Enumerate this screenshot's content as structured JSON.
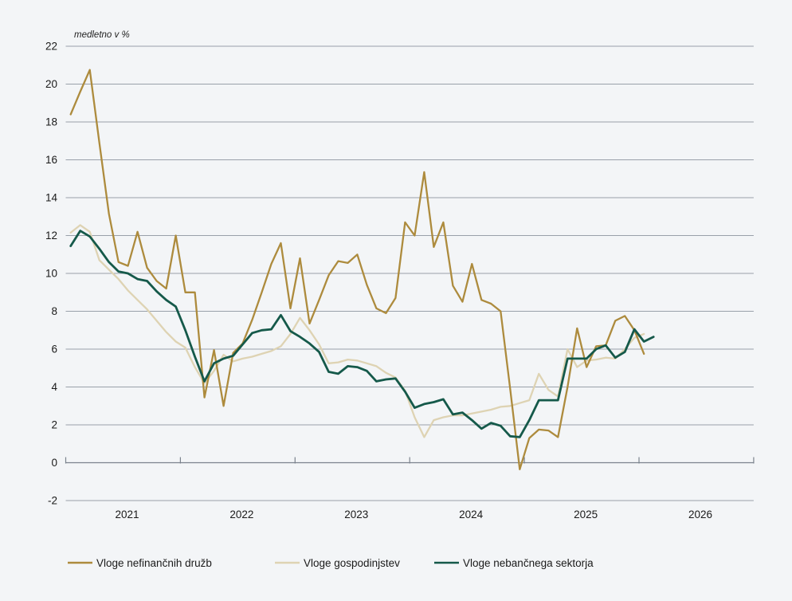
{
  "chart_data": {
    "type": "line",
    "note": "medletno v %",
    "title": "",
    "xlabel": "",
    "ylabel": "medletno v %",
    "ylim": [
      -2,
      22
    ],
    "ytick_step": 2,
    "ytick_labels": [
      "22",
      "20",
      "18",
      "16",
      "14",
      "12",
      "10",
      "8",
      "6",
      "4",
      "2",
      "0",
      "-2"
    ],
    "year_labels": [
      "2021",
      "2022",
      "2023",
      "2024",
      "2025",
      "2026"
    ],
    "grid": true,
    "legend_position": "bottom",
    "x_months": [
      "2020-07",
      "2020-08",
      "2020-09",
      "2020-10",
      "2020-11",
      "2020-12",
      "2021-01",
      "2021-02",
      "2021-03",
      "2021-04",
      "2021-05",
      "2021-06",
      "2021-07",
      "2021-08",
      "2021-09",
      "2021-10",
      "2021-11",
      "2021-12",
      "2022-01",
      "2022-02",
      "2022-03",
      "2022-04",
      "2022-05",
      "2022-06",
      "2022-07",
      "2022-08",
      "2022-09",
      "2022-10",
      "2022-11",
      "2022-12",
      "2023-01",
      "2023-02",
      "2023-03",
      "2023-04",
      "2023-05",
      "2023-06",
      "2023-07",
      "2023-08",
      "2023-09",
      "2023-10",
      "2023-11",
      "2023-12",
      "2024-01",
      "2024-02",
      "2024-03",
      "2024-04",
      "2024-05",
      "2024-06",
      "2024-07",
      "2024-08",
      "2024-09",
      "2024-10",
      "2024-11",
      "2024-12",
      "2025-01",
      "2025-02",
      "2025-03",
      "2025-04",
      "2025-05",
      "2025-06",
      "2025-07",
      "2025-08"
    ],
    "series": [
      {
        "name": "Vloge nefinančnih družb",
        "color": "#ad8b3d",
        "stroke_width": 2.3,
        "values": [
          18.4,
          19.6,
          20.75,
          16.9,
          13.15,
          10.6,
          10.4,
          12.2,
          10.3,
          9.6,
          9.2,
          12.0,
          9.0,
          9.0,
          3.45,
          5.95,
          3.0,
          5.8,
          6.3,
          7.55,
          9.0,
          10.5,
          11.6,
          8.15,
          10.8,
          7.35,
          8.6,
          9.9,
          10.65,
          10.55,
          11.0,
          9.4,
          8.15,
          7.9,
          8.7,
          12.7,
          12.0,
          15.35,
          11.4,
          12.7,
          9.35,
          8.5,
          10.5,
          8.6,
          8.4,
          8.0,
          3.9,
          -0.35,
          1.3,
          1.75,
          1.7,
          1.35,
          4.0,
          7.1,
          5.05,
          6.15,
          6.2,
          7.5,
          7.75,
          7.0,
          5.75,
          null
        ]
      },
      {
        "name": "Vloge gospodinjstev",
        "color": "#ded3b3",
        "stroke_width": 2.3,
        "values": [
          12.15,
          12.55,
          12.2,
          10.7,
          10.2,
          9.7,
          9.1,
          8.6,
          8.1,
          7.5,
          6.9,
          6.4,
          6.08,
          5.05,
          4.2,
          4.85,
          5.7,
          5.35,
          5.5,
          5.6,
          5.75,
          5.9,
          6.15,
          6.8,
          7.65,
          7.0,
          6.25,
          5.25,
          5.3,
          5.45,
          5.4,
          5.25,
          5.1,
          4.75,
          4.5,
          3.8,
          2.4,
          1.35,
          2.25,
          2.4,
          2.5,
          2.5,
          2.6,
          2.7,
          2.8,
          2.95,
          3.0,
          3.15,
          3.3,
          4.7,
          3.85,
          3.5,
          6.0,
          5.05,
          5.4,
          5.45,
          5.55,
          5.5,
          6.0,
          6.6,
          6.8,
          null
        ]
      },
      {
        "name": "Vloge nebančnega sektorja",
        "color": "#15594a",
        "stroke_width": 2.8,
        "values": [
          11.45,
          12.25,
          11.95,
          11.3,
          10.6,
          10.1,
          10.0,
          9.7,
          9.6,
          9.05,
          8.6,
          8.25,
          7.0,
          5.6,
          4.3,
          5.25,
          5.5,
          5.65,
          6.25,
          6.85,
          7.0,
          7.05,
          7.8,
          6.95,
          6.65,
          6.3,
          5.85,
          4.8,
          4.7,
          5.1,
          5.05,
          4.85,
          4.3,
          4.4,
          4.45,
          3.75,
          2.9,
          3.1,
          3.2,
          3.35,
          2.55,
          2.65,
          2.25,
          1.8,
          2.1,
          1.95,
          1.4,
          1.35,
          2.25,
          3.3,
          3.3,
          3.3,
          5.5,
          5.5,
          5.5,
          6.0,
          6.2,
          5.55,
          5.85,
          7.05,
          6.4,
          6.65
        ]
      }
    ]
  }
}
